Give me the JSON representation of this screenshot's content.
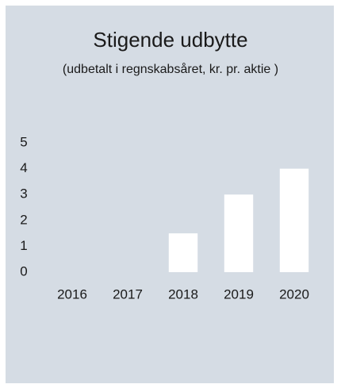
{
  "chart_data": {
    "type": "bar",
    "title": "Stigende udbytte",
    "subtitle": "(udbetalt i regnskabsåret, kr. pr. aktie )",
    "categories": [
      "2016",
      "2017",
      "2018",
      "2019",
      "2020"
    ],
    "values": [
      0,
      0,
      1.5,
      3,
      4
    ],
    "color": "#ffffff",
    "ylim": [
      0,
      5
    ],
    "yticks": [
      0,
      1,
      2,
      3,
      4,
      5
    ],
    "grid": false
  }
}
